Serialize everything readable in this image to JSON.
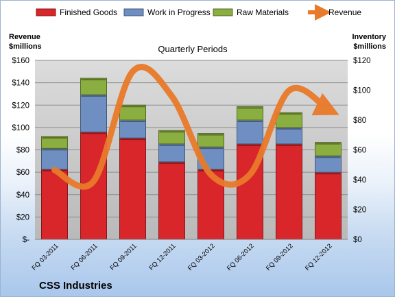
{
  "chart_data": {
    "type": "bar",
    "title": "Quarterly Periods",
    "company": "CSS Industries",
    "y_left_label_line1": "Revenue",
    "y_left_label_line2": "$millions",
    "y_right_label_line1": "Inventory",
    "y_right_label_line2": "$millions",
    "categories": [
      "FQ 03-2011",
      "FQ 06-2011",
      "FQ 09-2011",
      "FQ 12-2011",
      "FQ 03-2012",
      "FQ 06-2012",
      "FQ 09-2012",
      "FQ 12-2012"
    ],
    "series": [
      {
        "name": "Finished Goods",
        "axis": "right",
        "color": "#d9262b",
        "values": [
          47,
          72,
          68,
          52,
          47,
          64,
          64,
          45
        ]
      },
      {
        "name": "Work in Progress",
        "axis": "right",
        "color": "#6f8fc2",
        "values": [
          14,
          25,
          12,
          12,
          15,
          16,
          11,
          11
        ]
      },
      {
        "name": "Raw Materials",
        "axis": "right",
        "color": "#8aae3f",
        "values": [
          8,
          11,
          10,
          9,
          9,
          9,
          10,
          9
        ]
      },
      {
        "name": "Revenue",
        "axis": "left",
        "type": "line",
        "color": "#e97a2a",
        "values": [
          62,
          52,
          150,
          128,
          58,
          58,
          133,
          116
        ]
      }
    ],
    "y_left": {
      "min": 0,
      "max": 160,
      "step": 20,
      "tick_labels": [
        "$-",
        "$20",
        "$40",
        "$60",
        "$80",
        "$100",
        "$120",
        "$140",
        "$160"
      ]
    },
    "y_right": {
      "min": 0,
      "max": 120,
      "step": 20,
      "tick_labels": [
        "$0",
        "$20",
        "$40",
        "$60",
        "$80",
        "$100",
        "$120"
      ]
    },
    "stacked": true,
    "grid": true,
    "legend_position": "top"
  }
}
